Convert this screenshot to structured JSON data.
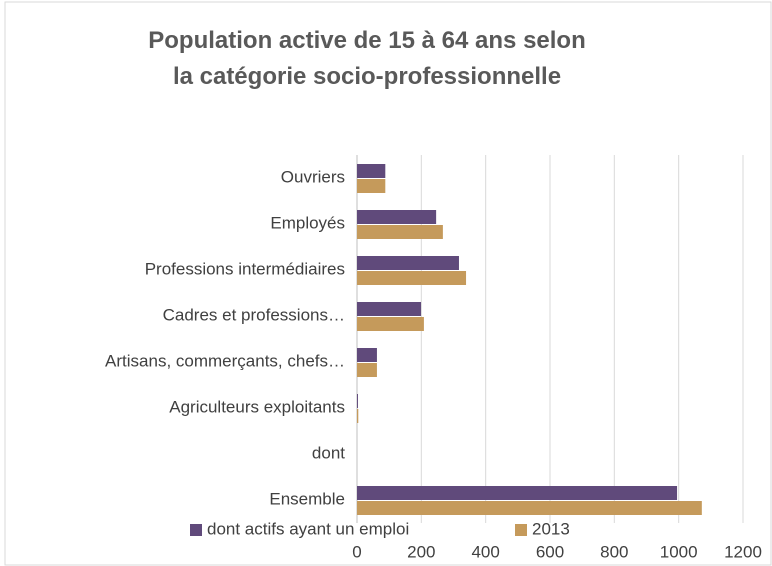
{
  "chart_data": {
    "type": "bar",
    "orientation": "horizontal",
    "title": "Population active de 15 à 64 ans selon la catégorie socio-professionnelle",
    "categories": [
      "Ouvriers",
      "Employés",
      "Professions intermédiaires",
      "Cadres et professions…",
      "Artisans, commerçants, chefs…",
      "Agriculteurs exploitants",
      "dont",
      "Ensemble"
    ],
    "series": [
      {
        "name": "dont actifs ayant un emploi",
        "color": "#604a7b",
        "values": [
          88,
          246,
          317,
          199,
          62,
          3,
          null,
          995
        ]
      },
      {
        "name": "2013",
        "color": "#c59a5b",
        "values": [
          88,
          267,
          339,
          208,
          62,
          4,
          null,
          1072
        ]
      }
    ],
    "xlim": [
      0,
      1200
    ],
    "xticks": [
      0,
      200,
      400,
      600,
      800,
      1000,
      1200
    ],
    "grid": true,
    "legend": "bottom"
  }
}
